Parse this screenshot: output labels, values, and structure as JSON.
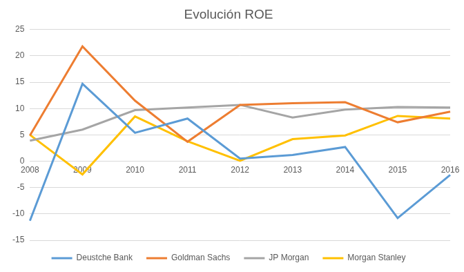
{
  "chart_data": {
    "type": "line",
    "title": "Evolución ROE",
    "categories": [
      "2008",
      "2009",
      "2010",
      "2011",
      "2012",
      "2013",
      "2014",
      "2015",
      "2016"
    ],
    "series": [
      {
        "name": "Deustche Bank",
        "color": "#5b9bd5",
        "values": [
          -11.3,
          14.7,
          5.4,
          8.1,
          0.5,
          1.2,
          2.7,
          -10.8,
          -2.6
        ]
      },
      {
        "name": "Goldman Sachs",
        "color": "#ed7d31",
        "values": [
          4.9,
          21.8,
          11.5,
          3.7,
          10.7,
          11.0,
          11.2,
          7.4,
          9.4
        ]
      },
      {
        "name": "JP Morgan",
        "color": "#a5a5a5",
        "values": [
          3.9,
          6.0,
          9.7,
          10.2,
          10.7,
          8.3,
          9.8,
          10.3,
          10.2
        ]
      },
      {
        "name": "Morgan Stanley",
        "color": "#ffc000",
        "values": [
          5.0,
          -2.5,
          8.5,
          3.8,
          0.1,
          4.2,
          4.9,
          8.6,
          8.1
        ]
      }
    ],
    "ylim": [
      -15,
      25
    ],
    "yticks": [
      -15,
      -10,
      -5,
      0,
      5,
      10,
      15,
      20,
      25
    ],
    "grid": true,
    "legend": "bottom"
  }
}
